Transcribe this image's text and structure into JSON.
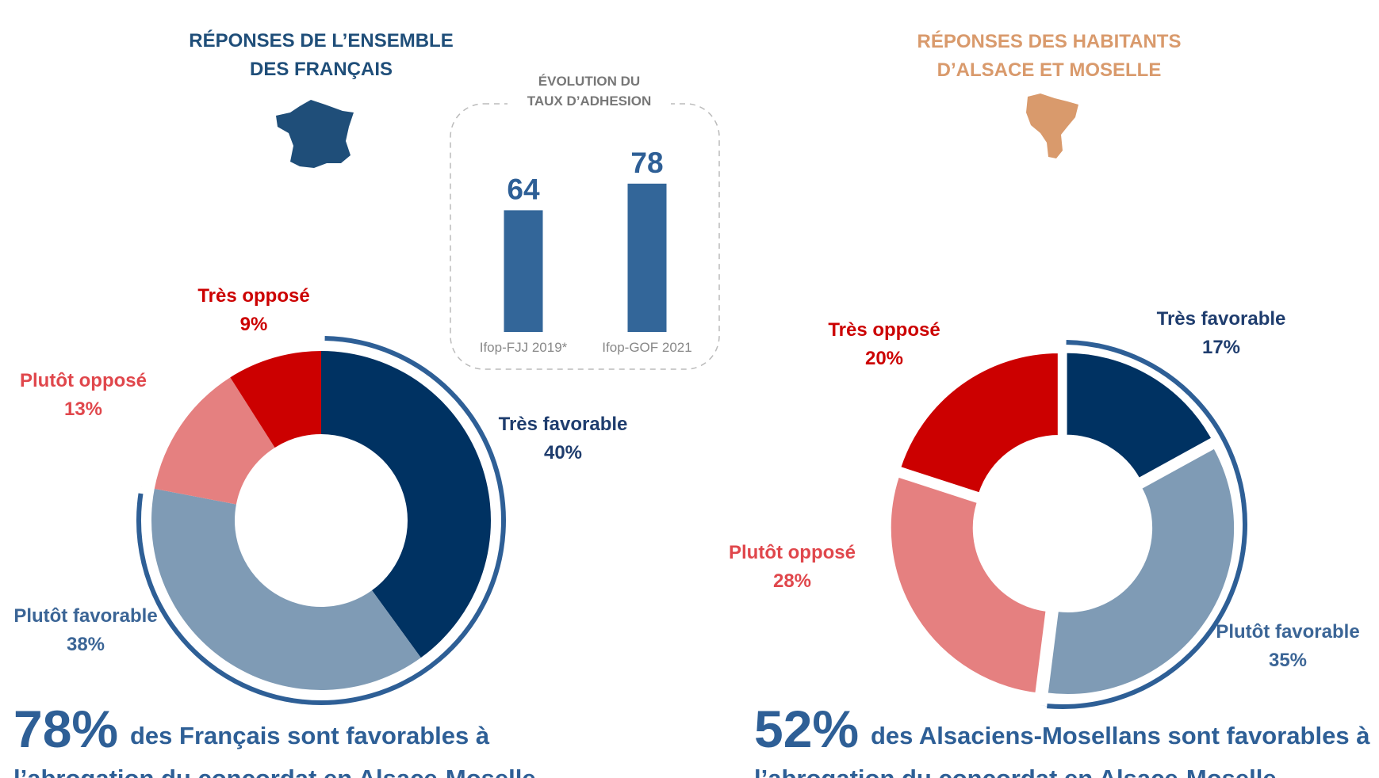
{
  "chart_data": [
    {
      "type": "pie",
      "title": [
        "RÉPONSES DE L’ENSEMBLE",
        "DES FRANÇAIS"
      ],
      "title_color": "#1f4e79",
      "categories": [
        "Très favorable",
        "Plutôt favorable",
        "Plutôt opposé",
        "Très opposé"
      ],
      "values": [
        40,
        38,
        13,
        9
      ],
      "value_labels": [
        "40%",
        "38%",
        "13%",
        "9%"
      ],
      "colors": [
        "#003262",
        "#7f9bb5",
        "#e58080",
        "#cc0000"
      ],
      "label_colors": [
        "#1f3d6e",
        "#3b6596",
        "#e0474c",
        "#cc0000"
      ],
      "exploded": false,
      "annotation": {
        "figure": "78%",
        "text": [
          "des Français sont favorables à",
          "l’abrogation du concordat en Alsace-Moselle"
        ]
      }
    },
    {
      "type": "bar",
      "title": [
        "ÉVOLUTION DU",
        "TAUX D’ADHESION"
      ],
      "categories": [
        "Ifop-FJJ 2019*",
        "Ifop-GOF 2021"
      ],
      "values": [
        64,
        78
      ],
      "color": "#336699"
    },
    {
      "type": "pie",
      "title": [
        "RÉPONSES DES HABITANTS",
        "D’ALSACE ET MOSELLE"
      ],
      "title_color": "#d99a6c",
      "categories": [
        "Très favorable",
        "Plutôt favorable",
        "Plutôt opposé",
        "Très opposé"
      ],
      "values": [
        17,
        35,
        28,
        20
      ],
      "value_labels": [
        "17%",
        "35%",
        "28%",
        "20%"
      ],
      "colors": [
        "#003262",
        "#7f9bb5",
        "#e58080",
        "#cc0000"
      ],
      "label_colors": [
        "#1f3d6e",
        "#3b6596",
        "#e0474c",
        "#cc0000"
      ],
      "exploded": true,
      "annotation": {
        "figure": "52%",
        "text": [
          "des Alsaciens-Mosellans sont favorables à",
          "l’abrogation du concordat en Alsace-Moselle"
        ]
      }
    }
  ]
}
